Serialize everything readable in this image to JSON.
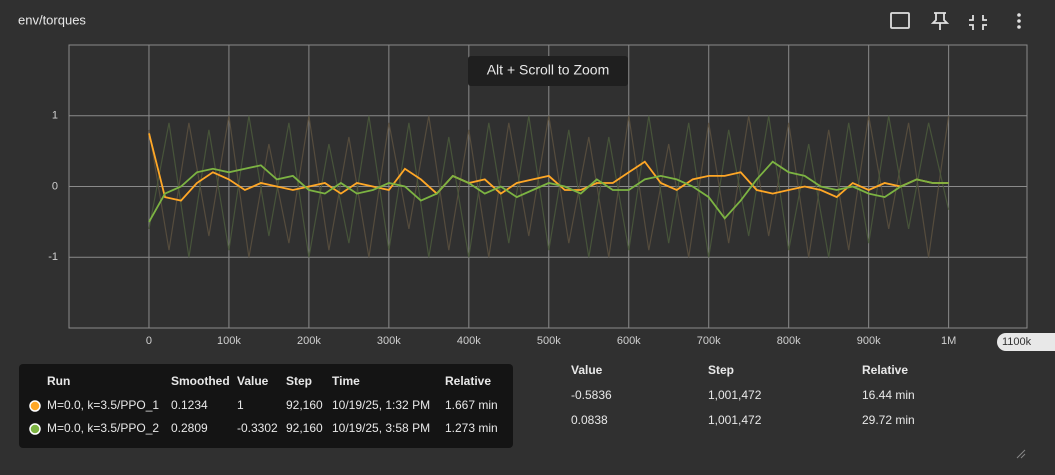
{
  "chart_data": {
    "type": "line",
    "title": "env/torques",
    "zoom_hint": "Alt + Scroll to Zoom",
    "x_hover_label": "1100k",
    "xlim": [
      -100000,
      1098000
    ],
    "ylim": [
      -2,
      2
    ],
    "xticks": [
      {
        "value": 0,
        "label": "0"
      },
      {
        "value": 100000,
        "label": "100k"
      },
      {
        "value": 200000,
        "label": "200k"
      },
      {
        "value": 300000,
        "label": "300k"
      },
      {
        "value": 400000,
        "label": "400k"
      },
      {
        "value": 500000,
        "label": "500k"
      },
      {
        "value": 600000,
        "label": "600k"
      },
      {
        "value": 700000,
        "label": "700k"
      },
      {
        "value": 800000,
        "label": "800k"
      },
      {
        "value": 900000,
        "label": "900k"
      },
      {
        "value": 1000000,
        "label": "1M"
      }
    ],
    "yticks": [
      -1,
      0,
      1
    ],
    "grid": true,
    "raw_series": [
      {
        "color": "#5c5140",
        "x": [
          0,
          25000,
          50000,
          75000,
          100000,
          125000,
          150000,
          175000,
          200000,
          225000,
          250000,
          275000,
          300000,
          325000,
          350000,
          375000,
          400000,
          425000,
          450000,
          475000,
          500000,
          525000,
          550000,
          575000,
          600000,
          625000,
          650000,
          675000,
          700000,
          725000,
          750000,
          775000,
          800000,
          825000,
          850000,
          875000,
          900000,
          925000,
          950000,
          975000,
          1000000
        ],
        "values": [
          0.8,
          -0.9,
          0.9,
          -0.7,
          1,
          -1,
          0.6,
          -0.8,
          1,
          -0.9,
          0.7,
          -1,
          0.9,
          -0.6,
          1,
          -0.9,
          0.8,
          -1,
          0.9,
          -0.7,
          1,
          -0.8,
          0.7,
          -1,
          1,
          -0.9,
          0.6,
          -1,
          0.9,
          -0.8,
          1,
          -0.7,
          0.9,
          -1,
          0.8,
          -0.9,
          1,
          -0.6,
          0.9,
          -1,
          1
        ]
      },
      {
        "color": "#4b5a3c",
        "x": [
          0,
          25000,
          50000,
          75000,
          100000,
          125000,
          150000,
          175000,
          200000,
          225000,
          250000,
          275000,
          300000,
          325000,
          350000,
          375000,
          400000,
          425000,
          450000,
          475000,
          500000,
          525000,
          550000,
          575000,
          600000,
          625000,
          650000,
          675000,
          700000,
          725000,
          750000,
          775000,
          800000,
          825000,
          850000,
          875000,
          900000,
          925000,
          950000,
          975000,
          1000000
        ],
        "values": [
          -0.6,
          0.9,
          -1,
          0.8,
          -0.9,
          1,
          -0.7,
          0.9,
          -1,
          0.6,
          -0.8,
          1,
          -0.9,
          0.9,
          -1,
          0.7,
          -1,
          0.9,
          -0.8,
          1,
          -0.9,
          0.8,
          -1,
          0.7,
          -0.9,
          1,
          -0.8,
          0.9,
          -1,
          0.8,
          -0.7,
          1,
          -0.9,
          0.6,
          -1,
          0.9,
          -0.8,
          1,
          -0.6,
          0.9,
          -0.33
        ]
      }
    ],
    "series": [
      {
        "name": "M=0.0, k=3.5/PPO_1",
        "color": "#ffa726",
        "x": [
          0,
          20000,
          40000,
          60000,
          80000,
          100000,
          120000,
          140000,
          160000,
          180000,
          200000,
          220000,
          240000,
          260000,
          280000,
          300000,
          320000,
          340000,
          360000,
          380000,
          400000,
          420000,
          440000,
          460000,
          480000,
          500000,
          520000,
          540000,
          560000,
          580000,
          600000,
          620000,
          640000,
          660000,
          680000,
          700000,
          720000,
          740000,
          760000,
          780000,
          800000,
          820000,
          840000,
          860000,
          880000,
          900000,
          920000,
          940000,
          960000,
          980000,
          1000000
        ],
        "values": [
          0.75,
          -0.15,
          -0.2,
          0.05,
          0.2,
          0.1,
          -0.05,
          0.05,
          0,
          -0.05,
          0,
          0.05,
          -0.1,
          0.05,
          0,
          -0.05,
          0.25,
          0.1,
          -0.1,
          0.15,
          0.05,
          0.1,
          -0.1,
          0.05,
          0.1,
          0.15,
          -0.05,
          -0.05,
          0.05,
          0.05,
          0.2,
          0.35,
          0.05,
          -0.05,
          0.1,
          0.15,
          0.15,
          0.2,
          -0.05,
          -0.1,
          -0.05,
          0,
          -0.05,
          -0.15,
          0.05,
          -0.05,
          0.05,
          0,
          0.1,
          0.05,
          0.05
        ]
      },
      {
        "name": "M=0.0, k=3.5/PPO_2",
        "color": "#7cb342",
        "x": [
          0,
          20000,
          40000,
          60000,
          80000,
          100000,
          120000,
          140000,
          160000,
          180000,
          200000,
          220000,
          240000,
          260000,
          280000,
          300000,
          320000,
          340000,
          360000,
          380000,
          400000,
          420000,
          440000,
          460000,
          480000,
          500000,
          520000,
          540000,
          560000,
          580000,
          600000,
          620000,
          640000,
          660000,
          680000,
          700000,
          720000,
          740000,
          760000,
          780000,
          800000,
          820000,
          840000,
          860000,
          880000,
          900000,
          920000,
          940000,
          960000,
          980000,
          1000000
        ],
        "values": [
          -0.5,
          -0.1,
          0,
          0.2,
          0.25,
          0.2,
          0.25,
          0.3,
          0.1,
          0.15,
          -0.05,
          -0.1,
          0.05,
          -0.1,
          -0.05,
          0.05,
          0,
          -0.2,
          -0.1,
          0.15,
          0.05,
          -0.1,
          0,
          -0.15,
          -0.05,
          0.05,
          0,
          -0.1,
          0.1,
          -0.05,
          -0.05,
          0.1,
          0.15,
          0.1,
          0,
          -0.15,
          -0.45,
          -0.2,
          0.1,
          0.35,
          0.2,
          0.15,
          0,
          -0.05,
          0,
          -0.1,
          -0.15,
          0,
          0.1,
          0.05,
          0.05
        ]
      }
    ],
    "tooltip": {
      "headers": [
        "Run",
        "Smoothed",
        "Value",
        "Step",
        "Time",
        "Relative"
      ],
      "rows": [
        {
          "smoothed": "0.1234",
          "value": "1",
          "step": "92,160",
          "time": "10/19/25, 1:32 PM",
          "relative": "1.667 min"
        },
        {
          "smoothed": "0.2809",
          "value": "-0.3302",
          "step": "92,160",
          "time": "10/19/25, 3:58 PM",
          "relative": "1.273 min"
        }
      ]
    },
    "table": {
      "hidden_headers": [
        "Run ↑",
        "Smoothed"
      ],
      "headers": [
        "Value",
        "Step",
        "Relative"
      ],
      "rows": [
        [
          "-0.5836",
          "1,001,472",
          "16.44 min"
        ],
        [
          "0.0838",
          "1,001,472",
          "29.72 min"
        ]
      ]
    }
  }
}
